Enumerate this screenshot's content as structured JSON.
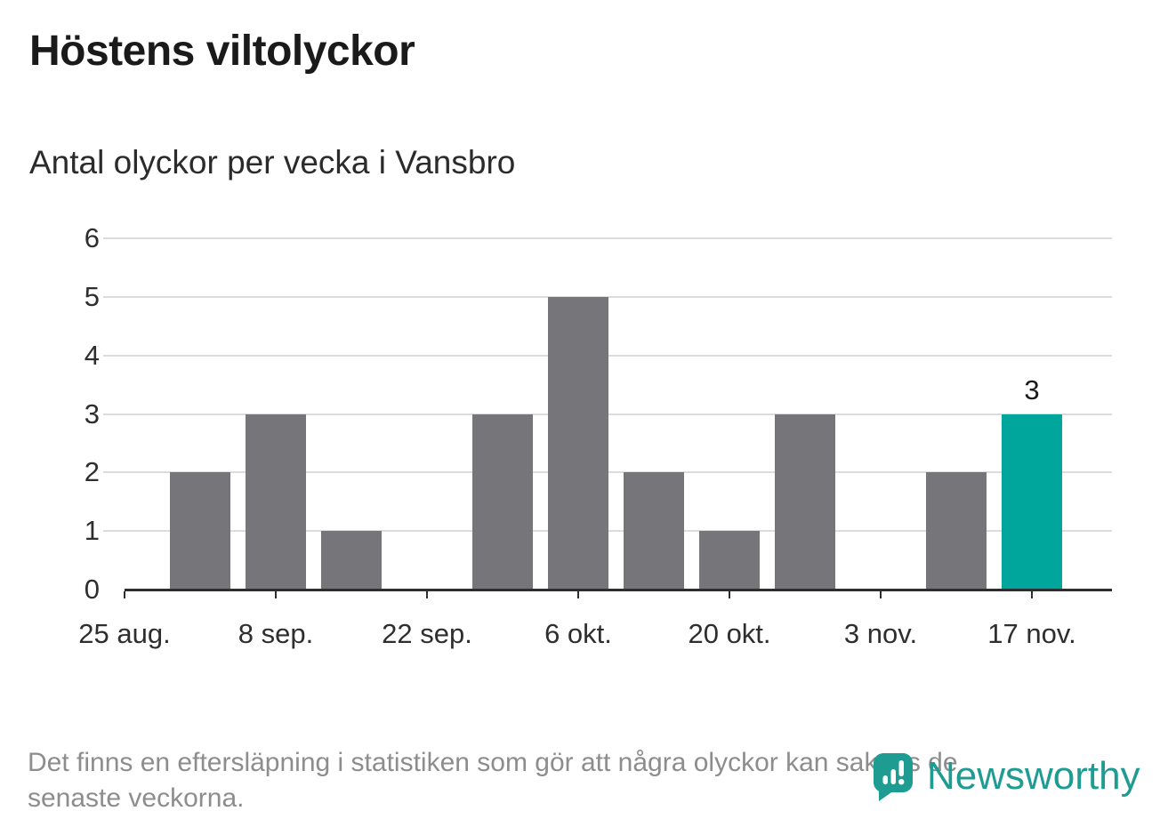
{
  "header": {
    "title": "Höstens viltolyckor",
    "subtitle": "Antal olyckor per vecka i Vansbro"
  },
  "chart_data": {
    "type": "bar",
    "title": "Höstens viltolyckor",
    "subtitle": "Antal olyckor per vecka i Vansbro",
    "categories": [
      "25 aug.",
      "1 sep.",
      "8 sep.",
      "15 sep.",
      "22 sep.",
      "29 sep.",
      "6 okt.",
      "13 okt.",
      "20 okt.",
      "27 okt.",
      "3 nov.",
      "10 nov.",
      "17 nov."
    ],
    "values": [
      0,
      2,
      3,
      1,
      0,
      3,
      5,
      2,
      1,
      3,
      0,
      2,
      3
    ],
    "x_tick_labels": [
      "25 aug.",
      "8 sep.",
      "22 sep.",
      "6 okt.",
      "20 okt.",
      "3 nov.",
      "17 nov."
    ],
    "y_ticks": [
      0,
      1,
      2,
      3,
      4,
      5,
      6
    ],
    "ylim": [
      0,
      6
    ],
    "xlabel": "",
    "ylabel": "",
    "grid": true,
    "legend": "none",
    "highlight_index": 12,
    "highlight_label": "3",
    "bar_color": "#76767A",
    "highlight_color": "#00A59B"
  },
  "footer": {
    "note_lines": [
      "Det finns en eftersläpning i statistiken som gör att några olyckor kan saknas de",
      "senaste veckorna."
    ],
    "logo_text": "Newsworthy",
    "logo_color": "#1E9C92"
  }
}
